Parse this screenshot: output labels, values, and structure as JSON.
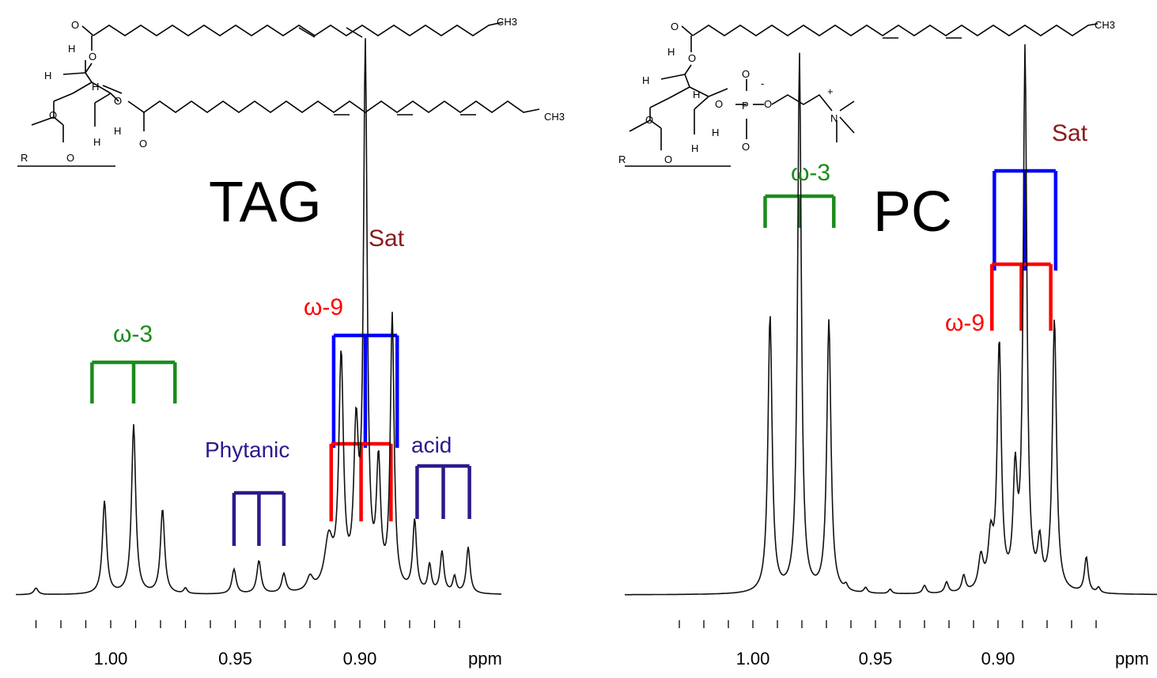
{
  "chart_data": [
    {
      "type": "line",
      "title": "TAG",
      "xlabel": "ppm",
      "xlim": [
        1.035,
        0.855
      ],
      "ylim": [
        0,
        1
      ],
      "x_reversed": true,
      "grid": false,
      "tick_labels": [
        "1.00",
        "0.95",
        "0.90"
      ],
      "tick_values": [
        1.0,
        0.95,
        0.9
      ],
      "baseline": 0.01,
      "peaks": [
        {
          "ppm": 1.03,
          "h": 0.012,
          "w": 0.001
        },
        {
          "ppm": 1.0025,
          "h": 0.17,
          "w": 0.001
        },
        {
          "ppm": 0.9908,
          "h": 0.31,
          "w": 0.001
        },
        {
          "ppm": 0.9792,
          "h": 0.155,
          "w": 0.001
        },
        {
          "ppm": 0.97,
          "h": 0.01,
          "w": 0.0008
        },
        {
          "ppm": 0.9505,
          "h": 0.045,
          "w": 0.001
        },
        {
          "ppm": 0.9405,
          "h": 0.06,
          "w": 0.001
        },
        {
          "ppm": 0.9305,
          "h": 0.035,
          "w": 0.001
        },
        {
          "ppm": 0.92,
          "h": 0.025,
          "w": 0.0015
        },
        {
          "ppm": 0.9125,
          "h": 0.09,
          "w": 0.002
        },
        {
          "ppm": 0.9075,
          "h": 0.42,
          "w": 0.0011
        },
        {
          "ppm": 0.9015,
          "h": 0.27,
          "w": 0.0011
        },
        {
          "ppm": 0.8978,
          "h": 0.98,
          "w": 0.0009
        },
        {
          "ppm": 0.8925,
          "h": 0.22,
          "w": 0.001
        },
        {
          "ppm": 0.887,
          "h": 0.5,
          "w": 0.0009
        },
        {
          "ppm": 0.878,
          "h": 0.13,
          "w": 0.0009
        },
        {
          "ppm": 0.872,
          "h": 0.05,
          "w": 0.0008
        },
        {
          "ppm": 0.867,
          "h": 0.075,
          "w": 0.0009
        },
        {
          "ppm": 0.862,
          "h": 0.03,
          "w": 0.0008
        },
        {
          "ppm": 0.8565,
          "h": 0.085,
          "w": 0.0009
        }
      ],
      "annotations": [
        {
          "text": "ω-3",
          "color": "#1a8c1a"
        },
        {
          "text": "Sat",
          "color": "#8b1a1a"
        },
        {
          "text": "ω-9",
          "color": "#ff0000"
        },
        {
          "text": "Phytanic",
          "color": "#2a1a8c"
        },
        {
          "text": "acid",
          "color": "#2a1a8c"
        }
      ],
      "multiplet_markers": [
        {
          "group": "ω-3",
          "color": "#1a8c1a",
          "lines": [
            1.0075,
            0.9908,
            0.9742
          ]
        },
        {
          "group": "Sat",
          "color": "#0000ff",
          "lines": [
            0.9105,
            0.8978,
            0.885
          ]
        },
        {
          "group": "ω-9",
          "color": "#ff0000",
          "lines": [
            0.9115,
            0.8995,
            0.8875
          ]
        },
        {
          "group": "Phytanic acid",
          "color": "#2a1a8c",
          "lines": [
            0.9505,
            0.9405,
            0.9305
          ]
        },
        {
          "group": "Phytanic acid",
          "color": "#2a1a8c",
          "lines": [
            0.877,
            0.8665,
            0.856
          ]
        }
      ]
    },
    {
      "type": "line",
      "title": "PC",
      "xlabel": "ppm",
      "xlim": [
        1.035,
        0.855
      ],
      "ylim": [
        0,
        1
      ],
      "x_reversed": true,
      "grid": false,
      "tick_labels": [
        "1.00",
        "0.95",
        "0.90",
        "ppm"
      ],
      "tick_values": [
        1.0,
        0.95,
        0.9
      ],
      "baseline": 0.01,
      "peaks": [
        {
          "ppm": 0.993,
          "h": 0.51,
          "w": 0.001
        },
        {
          "ppm": 0.981,
          "h": 0.99,
          "w": 0.0009
        },
        {
          "ppm": 0.969,
          "h": 0.5,
          "w": 0.001
        },
        {
          "ppm": 0.962,
          "h": 0.01,
          "w": 0.0008
        },
        {
          "ppm": 0.954,
          "h": 0.01,
          "w": 0.0008
        },
        {
          "ppm": 0.944,
          "h": 0.008,
          "w": 0.0008
        },
        {
          "ppm": 0.93,
          "h": 0.015,
          "w": 0.0009
        },
        {
          "ppm": 0.921,
          "h": 0.02,
          "w": 0.0009
        },
        {
          "ppm": 0.914,
          "h": 0.03,
          "w": 0.0009
        },
        {
          "ppm": 0.907,
          "h": 0.06,
          "w": 0.0012
        },
        {
          "ppm": 0.903,
          "h": 0.09,
          "w": 0.0012
        },
        {
          "ppm": 0.8995,
          "h": 0.45,
          "w": 0.001
        },
        {
          "ppm": 0.893,
          "h": 0.2,
          "w": 0.001
        },
        {
          "ppm": 0.889,
          "h": 0.99,
          "w": 0.0009
        },
        {
          "ppm": 0.883,
          "h": 0.08,
          "w": 0.001
        },
        {
          "ppm": 0.877,
          "h": 0.5,
          "w": 0.001
        },
        {
          "ppm": 0.864,
          "h": 0.065,
          "w": 0.0009
        },
        {
          "ppm": 0.859,
          "h": 0.01,
          "w": 0.0008
        }
      ],
      "annotations": [
        {
          "text": "ω-3",
          "color": "#1a8c1a"
        },
        {
          "text": "Sat",
          "color": "#8b1a1a"
        },
        {
          "text": "ω-9",
          "color": "#ff0000"
        }
      ],
      "multiplet_markers": [
        {
          "group": "ω-3",
          "color": "#1a8c1a",
          "lines": [
            0.995,
            0.981,
            0.967
          ]
        },
        {
          "group": "Sat",
          "color": "#0000ff",
          "lines": [
            0.9015,
            0.889,
            0.8765
          ]
        },
        {
          "group": "ω-9",
          "color": "#ff0000",
          "lines": [
            0.9025,
            0.8905,
            0.8785
          ]
        }
      ]
    }
  ],
  "structures": {
    "tag": {
      "atom_labels": [
        "O",
        "O",
        "O",
        "O",
        "O",
        "H",
        "H",
        "H",
        "H",
        "H",
        "R"
      ],
      "terminal_groups": [
        "CH3",
        "CH3"
      ]
    },
    "pc": {
      "atom_labels": [
        "O",
        "O",
        "O",
        "O",
        "O",
        "O",
        "O",
        "H",
        "H",
        "H",
        "H",
        "H",
        "R",
        "P",
        "N",
        "-",
        "+"
      ],
      "terminal_groups": [
        "CH3"
      ]
    }
  }
}
